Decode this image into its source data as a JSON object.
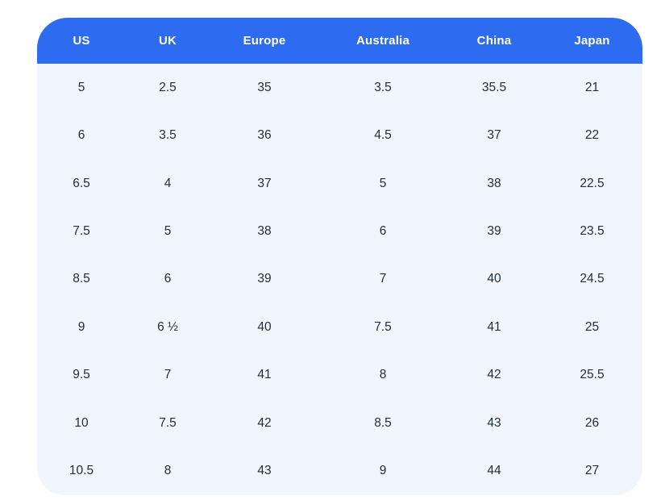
{
  "colors": {
    "page_bg": "#ffffff",
    "header_bg": "#2d6bf0",
    "header_text": "#ffffff",
    "body_bg": "#f1f5fc",
    "body_text": "#222d3d"
  },
  "table": {
    "columns": [
      "US",
      "UK",
      "Europe",
      "Australia",
      "China",
      "Japan"
    ],
    "rows": [
      [
        "5",
        "2.5",
        "35",
        "3.5",
        "35.5",
        "21"
      ],
      [
        "6",
        "3.5",
        "36",
        "4.5",
        "37",
        "22"
      ],
      [
        "6.5",
        "4",
        "37",
        "5",
        "38",
        "22.5"
      ],
      [
        "7.5",
        "5",
        "38",
        "6",
        "39",
        "23.5"
      ],
      [
        "8.5",
        "6",
        "39",
        "7",
        "40",
        "24.5"
      ],
      [
        "9",
        "6 ½",
        "40",
        "7.5",
        "41",
        "25"
      ],
      [
        "9.5",
        "7",
        "41",
        "8",
        "42",
        "25.5"
      ],
      [
        "10",
        "7.5",
        "42",
        "8.5",
        "43",
        "26"
      ],
      [
        "10.5",
        "8",
        "43",
        "9",
        "44",
        "27"
      ]
    ]
  },
  "chart_data": {
    "type": "table",
    "title": "",
    "columns": [
      "US",
      "UK",
      "Europe",
      "Australia",
      "China",
      "Japan"
    ],
    "rows": [
      [
        "5",
        "2.5",
        "35",
        "3.5",
        "35.5",
        "21"
      ],
      [
        "6",
        "3.5",
        "36",
        "4.5",
        "37",
        "22"
      ],
      [
        "6.5",
        "4",
        "37",
        "5",
        "38",
        "22.5"
      ],
      [
        "7.5",
        "5",
        "38",
        "6",
        "39",
        "23.5"
      ],
      [
        "8.5",
        "6",
        "39",
        "7",
        "40",
        "24.5"
      ],
      [
        "9",
        "6 ½",
        "40",
        "7.5",
        "41",
        "25"
      ],
      [
        "9.5",
        "7",
        "41",
        "8",
        "42",
        "25.5"
      ],
      [
        "10",
        "7.5",
        "42",
        "8.5",
        "43",
        "26"
      ],
      [
        "10.5",
        "8",
        "43",
        "9",
        "44",
        "27"
      ]
    ],
    "layout_hints": {
      "header_position": "top",
      "alignment": "center",
      "grid": false,
      "rounded_card": true
    }
  }
}
